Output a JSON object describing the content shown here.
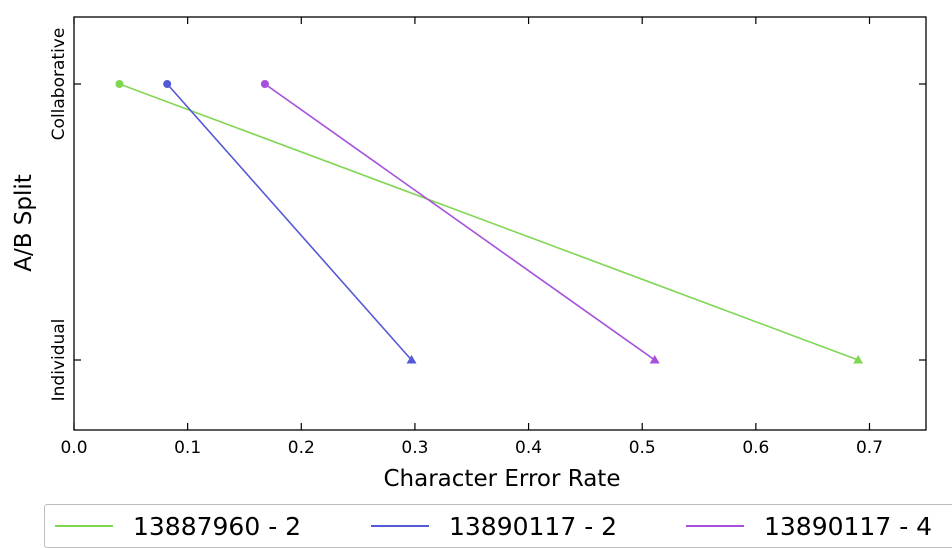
{
  "chart_data": {
    "type": "line",
    "xlabel": "Character Error Rate",
    "ylabel": "A/B Split",
    "xlim": [
      0.0,
      0.75
    ],
    "x_ticks": [
      "0.0",
      "0.1",
      "0.2",
      "0.3",
      "0.4",
      "0.5",
      "0.6",
      "0.7"
    ],
    "categories": [
      "Collaborative",
      "Individual"
    ],
    "grid": false,
    "legend_position": "bottom",
    "series": [
      {
        "name": "13887960 - 2",
        "color": "#7fd651",
        "points": [
          {
            "x": 0.04,
            "y": "Collaborative",
            "marker": "circle"
          },
          {
            "x": 0.69,
            "y": "Individual",
            "marker": "triangle"
          }
        ]
      },
      {
        "name": "13890117 - 2",
        "color": "#5559d6",
        "points": [
          {
            "x": 0.082,
            "y": "Collaborative",
            "marker": "circle"
          },
          {
            "x": 0.297,
            "y": "Individual",
            "marker": "triangle"
          }
        ]
      },
      {
        "name": "13890117 - 4",
        "color": "#a650db",
        "points": [
          {
            "x": 0.168,
            "y": "Collaborative",
            "marker": "circle"
          },
          {
            "x": 0.511,
            "y": "Individual",
            "marker": "triangle"
          }
        ]
      }
    ]
  }
}
